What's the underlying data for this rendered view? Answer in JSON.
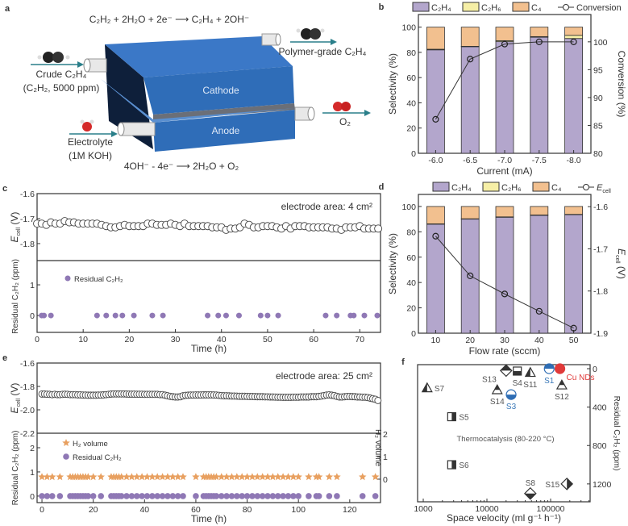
{
  "colors": {
    "c2h4": "#b3a6cc",
    "c2h6": "#f6efa6",
    "c4": "#f2c08f",
    "residual": "#8f78b5",
    "h2": "#e8a060",
    "dark": "#333333",
    "blue": "#2e6db4",
    "red": "#e03a3a",
    "teal": "#2a7f8a",
    "cell_blue": "#2f6db8"
  },
  "panel_a": {
    "letter": "a",
    "cathode_reaction": "C₂H₂ + 2H₂O + 2e⁻ ⟶ C₂H₄ + 2OH⁻",
    "anode_reaction": "4OH⁻ - 4e⁻ ⟶ 2H₂O + O₂",
    "inlet_gas": "Crude C₂H₄",
    "inlet_gas_detail": "(C₂H₂, 5000 ppm)",
    "outlet_gas": "Polymer-grade C₂H₄",
    "electrolyte": "Electrolyte",
    "electrolyte_detail": "(1M KOH)",
    "oxygen": "O₂",
    "cathode": "Cathode",
    "anode": "Anode"
  },
  "chart_data": [
    {
      "panel": "b",
      "type": "bar",
      "stacked": true,
      "categories": [
        "-6.0",
        "-6.5",
        "-7.0",
        "-7.5",
        "-8.0"
      ],
      "xlabel": "Current (mA)",
      "ylabel": "Selectivity (%)",
      "ylim": [
        0,
        110
      ],
      "yticks": [
        0,
        20,
        40,
        60,
        80,
        100
      ],
      "ylabel_right": "Conversion (%)",
      "ylim_right": [
        80,
        104.9
      ],
      "yticks_right": [
        80,
        85,
        90,
        95,
        100
      ],
      "series": [
        {
          "name": "C₂H₄",
          "values": [
            82,
            84.5,
            88.5,
            92,
            91
          ]
        },
        {
          "name": "C₂H₆",
          "values": [
            0.5,
            0.3,
            0.8,
            0.5,
            2.5
          ]
        },
        {
          "name": "C₄",
          "values": [
            17.5,
            15.2,
            10.7,
            7.5,
            6.5
          ]
        }
      ],
      "line": {
        "name": "Conversion",
        "axis": "right",
        "values": [
          86.1,
          96.9,
          99.6,
          100,
          100
        ]
      },
      "legend": "top"
    },
    {
      "panel": "c",
      "type": "scatter",
      "xlabel": "Time (h)",
      "xlim": [
        0,
        74.5
      ],
      "xticks": [
        0,
        10,
        20,
        30,
        40,
        50,
        60,
        70
      ],
      "annotation": "electrode area: 4 cm²",
      "upper": {
        "ylabel": {
          "main": "E",
          "sub": "cell",
          "rest": " (V)"
        },
        "ylim": [
          -1.6,
          -1.868
        ],
        "yticks": [
          -1.6,
          -1.7,
          -1.8
        ],
        "t_start": 0,
        "t_step": 1,
        "values": [
          -1.72,
          -1.72,
          -1.725,
          -1.715,
          -1.72,
          -1.72,
          -1.71,
          -1.715,
          -1.715,
          -1.72,
          -1.72,
          -1.72,
          -1.72,
          -1.72,
          -1.725,
          -1.73,
          -1.735,
          -1.735,
          -1.73,
          -1.725,
          -1.73,
          -1.73,
          -1.73,
          -1.73,
          -1.72,
          -1.72,
          -1.725,
          -1.725,
          -1.725,
          -1.72,
          -1.725,
          -1.73,
          -1.72,
          -1.73,
          -1.73,
          -1.73,
          -1.73,
          -1.73,
          -1.735,
          -1.735,
          -1.735,
          -1.745,
          -1.74,
          -1.74,
          -1.735,
          -1.72,
          -1.725,
          -1.735,
          -1.735,
          -1.73,
          -1.73,
          -1.73,
          -1.735,
          -1.74,
          -1.73,
          -1.74,
          -1.73,
          -1.73,
          -1.73,
          -1.735,
          -1.735,
          -1.735,
          -1.735,
          -1.735,
          -1.74,
          -1.74,
          -1.745,
          -1.735,
          -1.735,
          -1.735,
          -1.73,
          -1.74,
          -1.74,
          -1.74,
          -1.74
        ]
      },
      "lower": {
        "ylabel": "Residual C₂H₂ (ppm)",
        "ylim": [
          -0.55,
          1.79
        ],
        "yticks": [
          0,
          1
        ],
        "series": [
          {
            "name": "Residual C₂H₂",
            "x": [
              1,
              1.5,
              3,
              13,
              15,
              17,
              18.5,
              21,
              25,
              27.3,
              37,
              39.3,
              41,
              43.8,
              48.5,
              50,
              52.3,
              62.6,
              65,
              68,
              68.7,
              71,
              73.8
            ],
            "y": 0
          }
        ]
      }
    },
    {
      "panel": "d",
      "type": "bar",
      "stacked": true,
      "categories": [
        "10",
        "20",
        "30",
        "40",
        "50"
      ],
      "xlabel": "Flow rate (sccm)",
      "ylabel": "Selectivity (%)",
      "ylim": [
        0,
        109.5
      ],
      "yticks": [
        0,
        20,
        40,
        60,
        80,
        100
      ],
      "ylabel_right": {
        "main": "E",
        "sub": "cell",
        "rest": " (V)"
      },
      "ylim_right": [
        -1.9,
        -1.571
      ],
      "yticks_right": [
        -1.9,
        -1.8,
        -1.7,
        -1.6
      ],
      "series": [
        {
          "name": "C₂H₄",
          "values": [
            86,
            90,
            91.5,
            93,
            93.5
          ]
        },
        {
          "name": "C₂H₆",
          "values": [
            0.3,
            0.3,
            0.3,
            0.3,
            0.3
          ]
        },
        {
          "name": "C₄",
          "values": [
            13.7,
            9.7,
            8.2,
            6.7,
            6.2
          ]
        }
      ],
      "line": {
        "name": {
          "main": "E",
          "sub": "cell"
        },
        "axis": "right",
        "values": [
          -1.67,
          -1.764,
          -1.807,
          -1.848,
          -1.888
        ]
      },
      "legend": "top"
    },
    {
      "panel": "e",
      "type": "scatter",
      "xlabel": "Time (h)",
      "xlim": [
        -1.9,
        132
      ],
      "xticks": [
        0,
        20,
        40,
        60,
        80,
        100,
        120
      ],
      "annotation": "electrode area: 25 cm²",
      "upper": {
        "ylabel": {
          "main": "E",
          "sub": "cell",
          "rest": " (V)"
        },
        "ylim": [
          -1.6,
          -2.2
        ],
        "yticks": [
          -1.6,
          -1.8,
          -2.0,
          -2.2
        ],
        "t_start": 0,
        "t_step": 1,
        "values": [
          -1.865,
          -1.865,
          -1.867,
          -1.868,
          -1.87,
          -1.868,
          -1.87,
          -1.87,
          -1.868,
          -1.867,
          -1.868,
          -1.87,
          -1.87,
          -1.87,
          -1.872,
          -1.872,
          -1.874,
          -1.874,
          -1.875,
          -1.875,
          -1.875,
          -1.875,
          -1.874,
          -1.874,
          -1.872,
          -1.87,
          -1.868,
          -1.865,
          -1.864,
          -1.864,
          -1.864,
          -1.864,
          -1.864,
          -1.865,
          -1.866,
          -1.866,
          -1.866,
          -1.867,
          -1.867,
          -1.867,
          -1.868,
          -1.868,
          -1.868,
          -1.868,
          -1.868,
          -1.868,
          -1.87,
          -1.87,
          -1.875,
          -1.88,
          -1.885,
          -1.888,
          -1.89,
          -1.89,
          -1.888,
          -1.88,
          -1.876,
          -1.875,
          -1.874,
          -1.874,
          -1.873,
          -1.873,
          -1.873,
          -1.872,
          -1.872,
          -1.872,
          -1.872,
          -1.873,
          -1.874,
          -1.876,
          -1.878,
          -1.88,
          -1.88,
          -1.881,
          -1.882,
          -1.882,
          -1.883,
          -1.884,
          -1.884,
          -1.884,
          -1.885,
          -1.886,
          -1.886,
          -1.887,
          -1.888,
          -1.888,
          -1.888,
          -1.889,
          -1.889,
          -1.89,
          -1.89,
          -1.891,
          -1.892,
          -1.892,
          -1.893,
          -1.893,
          -1.893,
          -1.893,
          -1.892,
          -1.892,
          -1.892,
          -1.89,
          -1.89,
          -1.89,
          -1.89,
          -1.888,
          -1.888,
          -1.888,
          -1.885,
          -1.882,
          -1.878,
          -1.874,
          -1.872,
          -1.875,
          -1.878,
          -1.885,
          -1.89,
          -1.89,
          -1.888,
          -1.886,
          -1.886,
          -1.887,
          -1.888,
          -1.89,
          -1.89,
          -1.892,
          -1.892,
          -1.895,
          -1.9,
          -1.905,
          -1.91,
          -1.92
        ]
      },
      "lower": {
        "ylabel": "Residual C₂H₂ (ppm)",
        "ylim": [
          -0.27,
          2.6
        ],
        "yticks": [
          0,
          1,
          2
        ],
        "ylabel_right": "H₂ volume",
        "ylim_right": [
          -1.04,
          2.04
        ],
        "yticks_right": [
          0,
          1,
          2
        ],
        "times": [
          0,
          2,
          4,
          7,
          11,
          12,
          13,
          14,
          15,
          16,
          17,
          18,
          20,
          23,
          27,
          28,
          29,
          30,
          31,
          33,
          35,
          37,
          39,
          41,
          43,
          45,
          47,
          49,
          51,
          53,
          55,
          60,
          63,
          64,
          65,
          66,
          67,
          68,
          70,
          72,
          74,
          76,
          78,
          80,
          82,
          84,
          86,
          88,
          90,
          92,
          94,
          96,
          98,
          100,
          104,
          107,
          108,
          112,
          115,
          125,
          130
        ],
        "series": [
          {
            "name": "H₂ volume",
            "marker": "star",
            "axis": "right",
            "y": 0.1
          },
          {
            "name": "Residual C₂H₂",
            "marker": "circle",
            "axis": "left",
            "y": 0
          }
        ]
      }
    },
    {
      "panel": "f",
      "type": "scatter",
      "xlabel": "Space velocity (ml g⁻¹ h⁻¹)",
      "xscale": "log",
      "xlim": [
        815,
        417000
      ],
      "xticks": [
        1000,
        10000,
        100000
      ],
      "xticklabels": [
        "1000",
        "10000",
        "100000"
      ],
      "ylabel": "Residual C₂H₂ (ppm)",
      "yaxis_side": "right",
      "yreversed": true,
      "ylim": [
        -42,
        1386
      ],
      "yticks": [
        0,
        400,
        800,
        1200
      ],
      "annotation": "Thermocatalysis (80-220 °C)",
      "points": [
        {
          "label": "S7",
          "x": 1150,
          "y": 200,
          "marker": "triangle",
          "half": "left",
          "color": "dark",
          "label_side": "right"
        },
        {
          "label": "S13",
          "x": 20000,
          "y": 20,
          "marker": "diamond",
          "half": "top",
          "color": "dark",
          "label_side": "below-left"
        },
        {
          "label": "S4",
          "x": 30000,
          "y": 25,
          "marker": "square",
          "half": "bottom",
          "color": "dark",
          "label_side": "below"
        },
        {
          "label": "S11",
          "x": 48000,
          "y": 40,
          "marker": "triangle",
          "half": "left",
          "color": "dark",
          "label_side": "below"
        },
        {
          "label": "S1",
          "x": 95000,
          "y": 0,
          "marker": "circle",
          "half": "top",
          "color": "blue",
          "label_side": "below"
        },
        {
          "label": "Cu NDs",
          "x": 140000,
          "y": 0,
          "marker": "circle",
          "half": "full",
          "color": "red",
          "label_side": "below-right"
        },
        {
          "label": "S12",
          "x": 150000,
          "y": 170,
          "marker": "triangle",
          "half": "top",
          "color": "dark",
          "label_side": "below"
        },
        {
          "label": "S14",
          "x": 14500,
          "y": 220,
          "marker": "triangle",
          "half": "top",
          "color": "dark",
          "label_side": "below"
        },
        {
          "label": "S3",
          "x": 24000,
          "y": 270,
          "marker": "circle",
          "half": "bottom",
          "color": "blue",
          "label_side": "below"
        },
        {
          "label": "S5",
          "x": 2800,
          "y": 500,
          "marker": "square",
          "half": "right",
          "color": "dark",
          "label_side": "right"
        },
        {
          "label": "S6",
          "x": 2800,
          "y": 1000,
          "marker": "square",
          "half": "right",
          "color": "dark",
          "label_side": "right"
        },
        {
          "label": "S8",
          "x": 48000,
          "y": 1300,
          "marker": "diamond",
          "half": "bottom",
          "color": "dark",
          "label_side": "above"
        },
        {
          "label": "S15",
          "x": 180000,
          "y": 1200,
          "marker": "diamond",
          "half": "right",
          "color": "dark",
          "label_side": "left"
        }
      ]
    }
  ]
}
